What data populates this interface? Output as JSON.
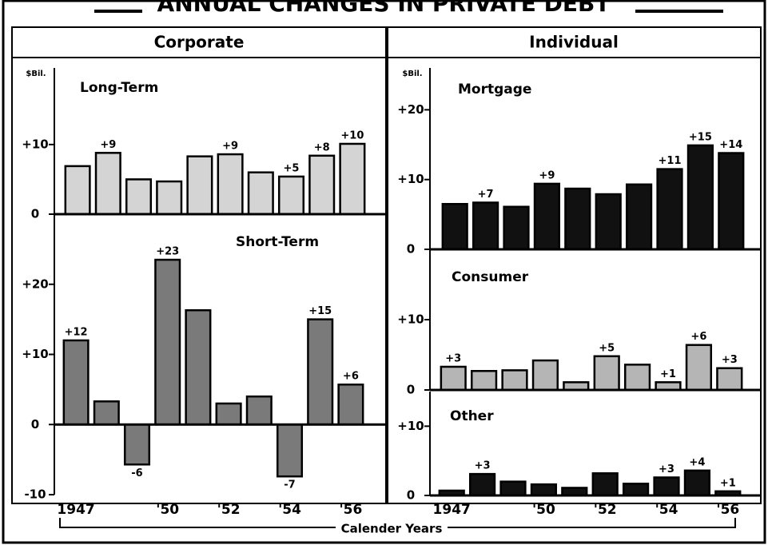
{
  "title": "ANNUAL CHANGES IN PRIVATE DEBT",
  "headers": [
    "Corporate",
    "Individual"
  ],
  "x_label": "Calender Years",
  "chart_data": [
    {
      "type": "bar",
      "title": "Long-Term",
      "y_label": "$Bil.",
      "color": "#d4d4d4",
      "values": [
        6.9,
        8.8,
        5.0,
        4.7,
        8.3,
        8.6,
        6.0,
        5.4,
        8.4,
        10.1
      ],
      "value_labels": [
        null,
        "+9",
        null,
        null,
        null,
        "+9",
        null,
        "+5",
        "+8",
        "+10"
      ],
      "ylim": [
        0,
        21
      ],
      "yticks": [
        0,
        {
          "value": 10,
          "label": "+10"
        }
      ]
    },
    {
      "type": "bar",
      "title": "Short-Term",
      "color": "#7a7a7a",
      "categories": [
        "1947",
        null,
        null,
        "'50",
        null,
        "'52",
        null,
        "'54",
        null,
        "'56"
      ],
      "values": [
        12.0,
        3.3,
        -5.7,
        23.5,
        16.3,
        3.0,
        4.0,
        -7.4,
        15.0,
        5.7
      ],
      "value_labels": [
        "+12",
        null,
        "-6",
        "+23",
        null,
        null,
        null,
        "-7",
        "+15",
        "+6"
      ],
      "ylim": [
        -10,
        30
      ],
      "yticks": [
        -10,
        0,
        {
          "value": 10,
          "label": "+10"
        },
        {
          "value": 20,
          "label": "+20"
        }
      ]
    },
    {
      "type": "bar",
      "title": "Mortgage",
      "y_label": "$Bil.",
      "color": "#111111",
      "values": [
        6.5,
        6.7,
        6.1,
        9.4,
        8.7,
        7.9,
        9.3,
        11.5,
        14.9,
        13.8
      ],
      "value_labels": [
        null,
        "+7",
        null,
        "+9",
        null,
        null,
        null,
        "+11",
        "+15",
        "+14"
      ],
      "ylim": [
        0,
        26
      ],
      "yticks": [
        0,
        {
          "value": 10,
          "label": "+10"
        },
        {
          "value": 20,
          "label": "+20"
        }
      ]
    },
    {
      "type": "bar",
      "title": "Consumer",
      "color": "#b5b5b5",
      "values": [
        3.3,
        2.7,
        2.8,
        4.2,
        1.1,
        4.8,
        3.6,
        1.1,
        6.4,
        3.1
      ],
      "value_labels": [
        "+3",
        null,
        null,
        null,
        null,
        "+5",
        null,
        "+1",
        "+6",
        "+3"
      ],
      "ylim": [
        0,
        20
      ],
      "yticks": [
        0,
        {
          "value": 10,
          "label": "+10"
        }
      ]
    },
    {
      "type": "bar",
      "title": "Other",
      "color": "#111111",
      "categories": [
        "1947",
        null,
        null,
        "'50",
        null,
        "'52",
        null,
        "'54",
        null,
        "'56"
      ],
      "values": [
        0.7,
        3.1,
        2.0,
        1.6,
        1.1,
        3.2,
        1.7,
        2.6,
        3.6,
        0.6
      ],
      "value_labels": [
        null,
        "+3",
        null,
        null,
        null,
        null,
        null,
        "+3",
        "+4",
        "+1"
      ],
      "ylim": [
        0,
        15
      ],
      "yticks": [
        0,
        {
          "value": 10,
          "label": "+10"
        }
      ]
    }
  ]
}
